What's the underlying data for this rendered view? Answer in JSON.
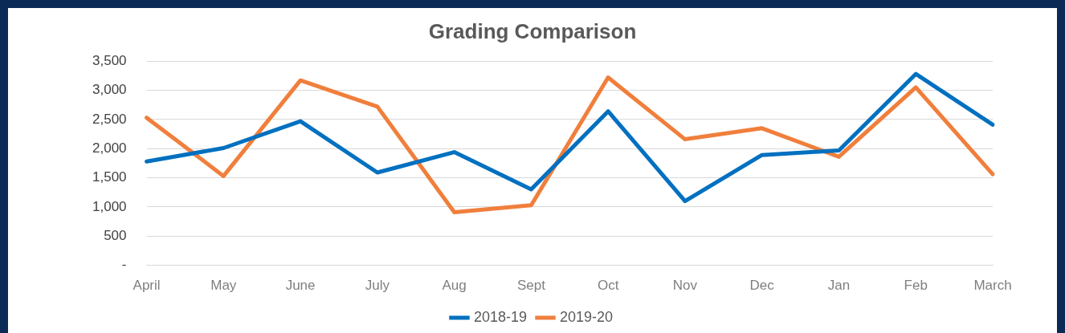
{
  "chart_data": {
    "type": "line",
    "title": "Grading Comparison",
    "categories": [
      "April",
      "May",
      "June",
      "July",
      "Aug",
      "Sept",
      "Oct",
      "Nov",
      "Dec",
      "Jan",
      "Feb",
      "March"
    ],
    "series": [
      {
        "name": "2018-19",
        "color": "#0070c0",
        "values": [
          1780,
          2010,
          2470,
          1590,
          1940,
          1300,
          2640,
          1100,
          1890,
          1970,
          3280,
          2410
        ]
      },
      {
        "name": "2019-20",
        "color": "#f07f3c",
        "values": [
          2530,
          1530,
          3170,
          2720,
          910,
          1030,
          3220,
          2160,
          2350,
          1860,
          3050,
          1560
        ]
      }
    ],
    "ylim": [
      0,
      3500
    ],
    "yticks": [
      {
        "value": 0,
        "label": "-"
      },
      {
        "value": 500,
        "label": "500"
      },
      {
        "value": 1000,
        "label": "1,000"
      },
      {
        "value": 1500,
        "label": "1,500"
      },
      {
        "value": 2000,
        "label": "2,000"
      },
      {
        "value": 2500,
        "label": "2,500"
      },
      {
        "value": 3000,
        "label": "3,000"
      },
      {
        "value": 3500,
        "label": "3,500"
      }
    ],
    "grid": "y",
    "legend": "bottom",
    "marker": "none",
    "line_style": "solid"
  }
}
